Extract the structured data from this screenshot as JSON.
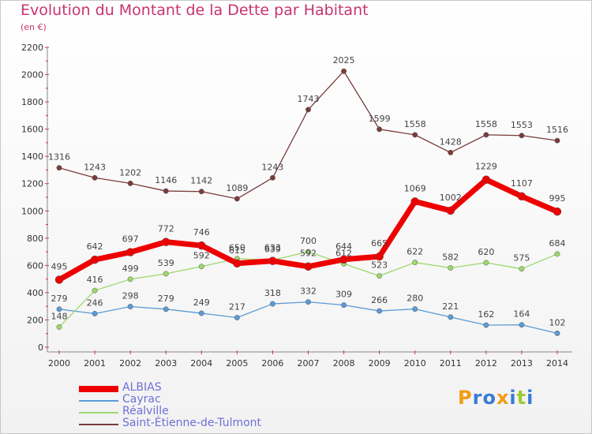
{
  "title": "Evolution du Montant de la Dette par Habitant",
  "subtitle": "(en €)",
  "logo_text": "Proxiti",
  "chart_data": {
    "type": "line",
    "title": "Evolution du Montant de la Dette par Habitant",
    "subtitle": "(en €)",
    "xlabel": "",
    "ylabel": "",
    "ylim": [
      0,
      2200
    ],
    "yticks": [
      0,
      200,
      400,
      600,
      800,
      1000,
      1200,
      1400,
      1600,
      1800,
      2000,
      2200
    ],
    "grid": false,
    "legend_placement": "bottom-left",
    "x": [
      "2000",
      "2001",
      "2002",
      "2003",
      "2004",
      "2005",
      "2006",
      "2007",
      "2008",
      "2009",
      "2010",
      "2011",
      "2012",
      "2013",
      "2014"
    ],
    "series": [
      {
        "name": "Saint-Étienne-de-Tulmont",
        "color": "#7a3b3b",
        "values": [
          1316,
          1243,
          1202,
          1146,
          1142,
          1089,
          1243,
          1743,
          2025,
          1599,
          1558,
          1428,
          1558,
          1553,
          1516
        ]
      },
      {
        "name": "Cayrac",
        "color": "#5b9bd5",
        "values": [
          279,
          246,
          298,
          279,
          249,
          217,
          318,
          332,
          309,
          266,
          280,
          221,
          162,
          164,
          102
        ]
      },
      {
        "name": "Réalville",
        "color": "#9ed86c",
        "values": [
          148,
          416,
          499,
          539,
          592,
          650,
          639,
          700,
          612,
          523,
          622,
          582,
          620,
          575,
          684
        ]
      },
      {
        "name": "ALBIAS",
        "color": "#ee0000",
        "values": [
          495,
          642,
          697,
          772,
          746,
          615,
          633,
          592,
          644,
          665,
          1069,
          1002,
          1229,
          1107,
          995
        ]
      }
    ]
  }
}
